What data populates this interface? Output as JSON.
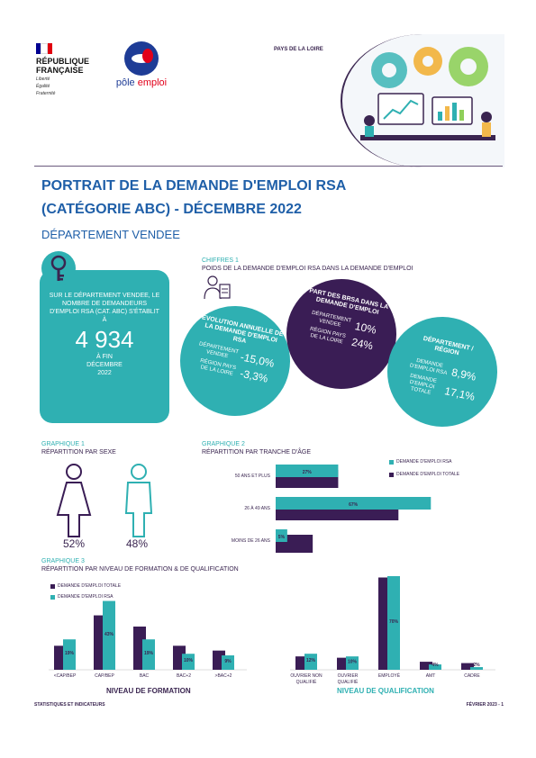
{
  "header": {
    "rf_line1": "RÉPUBLIQUE",
    "rf_line2": "FRANÇAISE",
    "rf_motto1": "Liberté",
    "rf_motto2": "Égalité",
    "rf_motto3": "Fraternité",
    "pe_name_left": "pôle ",
    "pe_name_right": "emploi",
    "region": "PAYS DE LA LOIRE",
    "flag_colors": [
      "#000091",
      "#ffffff",
      "#e1000f"
    ]
  },
  "title_line1": "PORTRAIT DE LA DEMANDE D'EMPLOI RSA",
  "title_line2": "(CATÉGORIE ABC) -   DÉCEMBRE 2022",
  "subtitle": "DÉPARTEMENT VENDEE",
  "key_figure": {
    "text": "SUR LE DÉPARTEMENT VENDEE, LE NOMBRE DE DEMANDEURS D'EMPLOI RSA (CAT. ABC) S'ÉTABLIT À",
    "value": "4 934",
    "foot1": "À FIN",
    "foot2": "DÉCEMBRE",
    "foot3": "2022"
  },
  "chiffres": {
    "label": "CHIFFRES 1",
    "desc": "POIDS DE LA DEMANDE D'EMPLOI RSA DANS LA DEMANDE D'EMPLOI",
    "bubble1": {
      "title": "ÉVOLUTION ANNUELLE DE LA DEMANDE D'EMPLOI RSA",
      "r1_label": "DÉPARTEMENT VENDEE",
      "r1_value": "-15,0%",
      "r2_label": "RÉGION PAYS DE LA LOIRE",
      "r2_value": "-3,3%"
    },
    "bubble2": {
      "title": "PART DES BRSA DANS LA DEMANDE D'EMPLOI",
      "r1_label": "DÉPARTEMENT VENDEE",
      "r1_value": "10%",
      "r2_label": "RÉGION PAYS DE LA LOIRE",
      "r2_value": "24%"
    },
    "bubble3": {
      "title": "DÉPARTEMENT / RÉGION",
      "r1_label": "DEMANDE D'EMPLOI RSA",
      "r1_value": "8,9%",
      "r2_label": "DEMANDE D'EMPLOI TOTALE",
      "r2_value": "17,1%"
    }
  },
  "graph1": {
    "label": "GRAPHIQUE 1",
    "desc": "RÉPARTITION PAR SEXE",
    "female_pct": "52%",
    "male_pct": "48%"
  },
  "graph2": {
    "label": "GRAPHIQUE 2",
    "desc": "RÉPARTITION PAR TRANCHE D'ÂGE"
  },
  "graph3": {
    "label": "GRAPHIQUE 3",
    "desc": "RÉPARTITION PAR NIVEAU DE FORMATION & DE QUALIFICATION",
    "axis_formation": "NIVEAU DE FORMATION",
    "axis_qualification": "NIVEAU DE QUALIFICATION"
  },
  "footer": {
    "left": "STATISTIQUES ET INDICATEURS",
    "right": "FÉVRIER 2023 - 1"
  },
  "chart_data": [
    {
      "type": "bar",
      "orientation": "horizontal",
      "categories": [
        "50 ANS ET PLUS",
        "26 À 49 ANS",
        "MOINS DE 26 ANS"
      ],
      "series": [
        {
          "name": "DEMANDE D'EMPLOI RSA",
          "values": [
            27,
            67,
            5
          ],
          "color": "#2fb0b2"
        },
        {
          "name": "DEMANDE D'EMPLOI TOTALE",
          "values": [
            27,
            53,
            16
          ],
          "color": "#3a1d55"
        }
      ],
      "data_labels": [
        "27%",
        "67%",
        "5%"
      ],
      "legend": "top-right",
      "xlim": [
        0,
        70
      ]
    },
    {
      "type": "bar",
      "categories": [
        "<CAP/BEP",
        "CAP/BEP",
        "BAC",
        "BAC+2",
        ">BAC+2"
      ],
      "series": [
        {
          "name": "DEMANDE D'EMPLOI TOTALE",
          "values": [
            15,
            34,
            27,
            15,
            12
          ],
          "color": "#3a1d55"
        },
        {
          "name": "DEMANDE D'EMPLOI RSA",
          "values": [
            19,
            43,
            19,
            10,
            9
          ],
          "color": "#2fb0b2"
        }
      ],
      "data_labels": [
        "19%",
        "43%",
        "19%",
        "10%",
        "9%"
      ],
      "legend": "top-left",
      "ylim": [
        0,
        45
      ]
    },
    {
      "type": "bar",
      "categories": [
        "OUVRIER NON QUALIFIÉ",
        "OUVRIER QUALIFIÉ",
        "EMPLOYÉ",
        "AMT",
        "CADRE"
      ],
      "series": [
        {
          "name": "DEMANDE D'EMPLOI TOTALE",
          "values": [
            10,
            9,
            69,
            6,
            5
          ],
          "color": "#3a1d55"
        },
        {
          "name": "DEMANDE D'EMPLOI RSA",
          "values": [
            12,
            10,
            70,
            4,
            2
          ],
          "color": "#2fb0b2"
        }
      ],
      "data_labels": [
        "12%",
        "10%",
        "70%",
        "4%",
        "2%"
      ],
      "ylim": [
        0,
        70
      ]
    }
  ]
}
